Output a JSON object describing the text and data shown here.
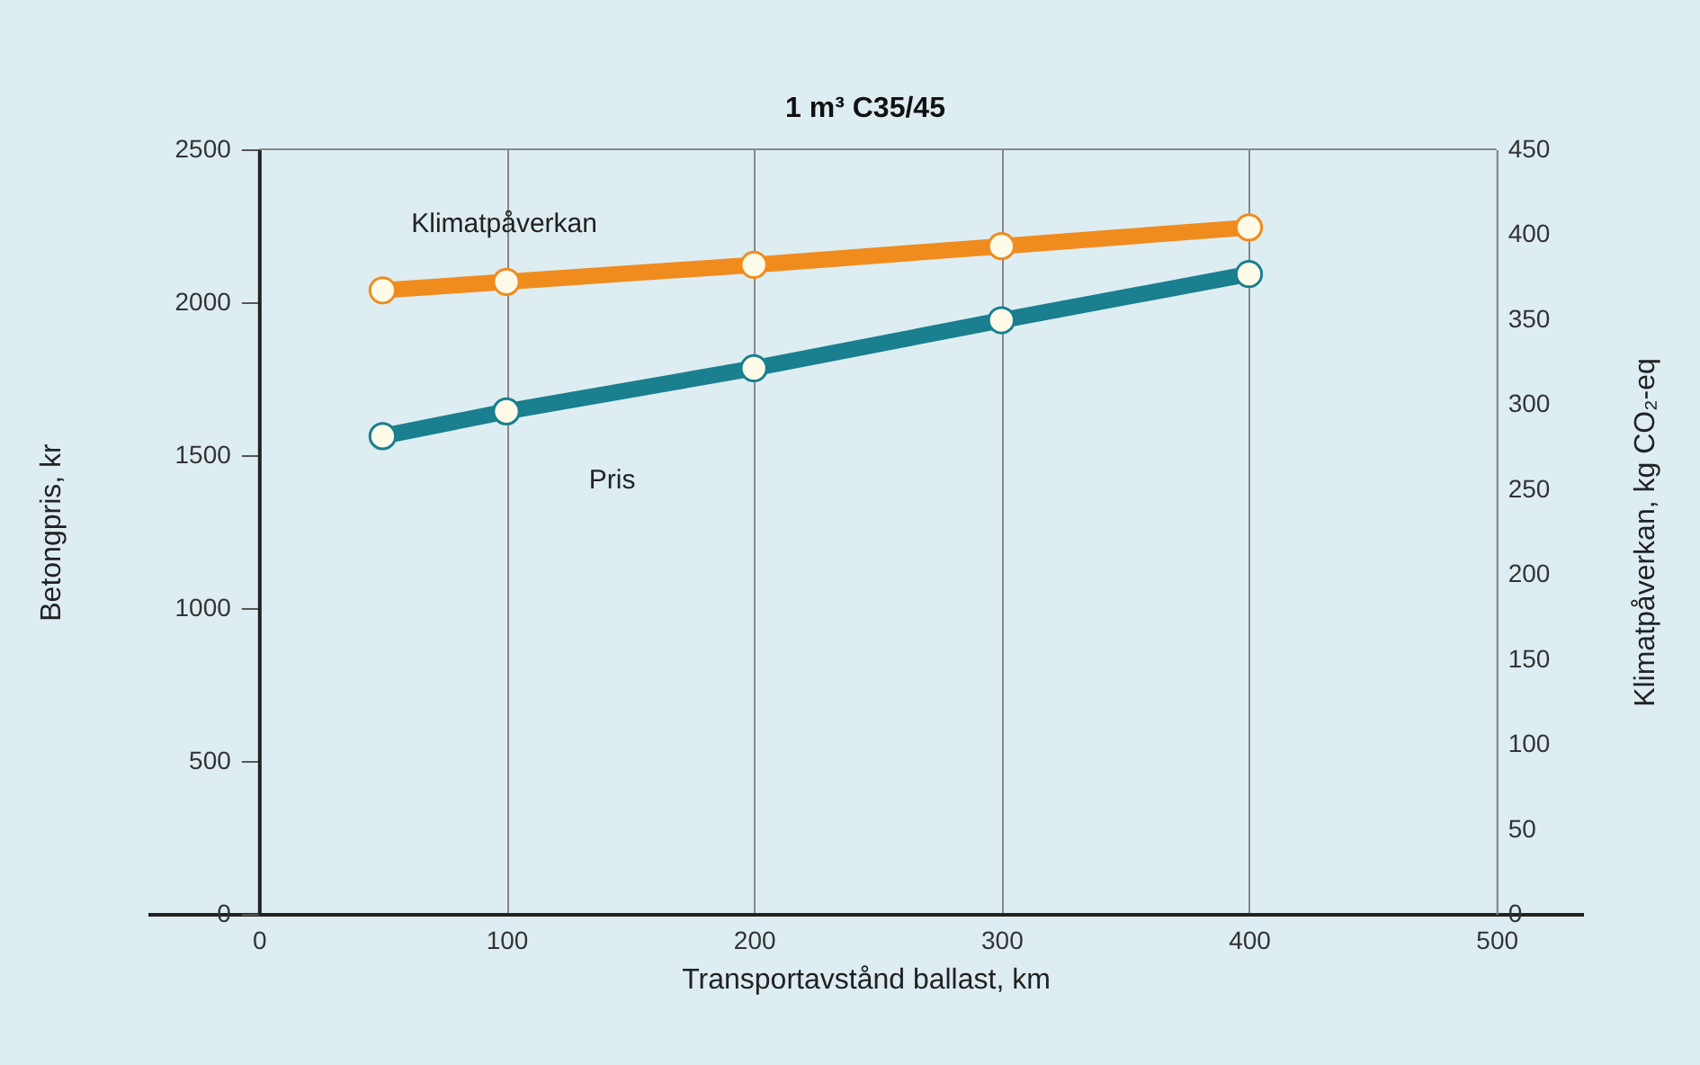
{
  "chart_data": {
    "type": "line",
    "title": "1 m³ C35/45",
    "xlabel": "Transportavstånd ballast, km",
    "ylabel": "Betongpris, kr",
    "y2label": "Klimatpåverkan, kg CO₂-eq",
    "x": [
      50,
      100,
      200,
      300,
      400
    ],
    "series": [
      {
        "name": "Pris",
        "color": "#1a7f8e",
        "values": [
          1562,
          1643,
          1784,
          1941,
          2092
        ]
      },
      {
        "name": "Klimatpåverkan",
        "color": "#f08c1e",
        "values": [
          367,
          372,
          382,
          393,
          404
        ],
        "axis": "y2"
      }
    ],
    "xlim": [
      -45,
      535
    ],
    "xticks": [
      0,
      100,
      200,
      300,
      400,
      500
    ],
    "ylim": [
      0,
      2500
    ],
    "yticks": [
      0,
      500,
      1000,
      1500,
      2000,
      2500
    ],
    "y2lim": [
      0,
      450
    ],
    "y2ticks": [
      0,
      50,
      100,
      150,
      200,
      250,
      300,
      350,
      400,
      450
    ],
    "grid": "x",
    "marker": "circle",
    "line_style": "solid"
  }
}
